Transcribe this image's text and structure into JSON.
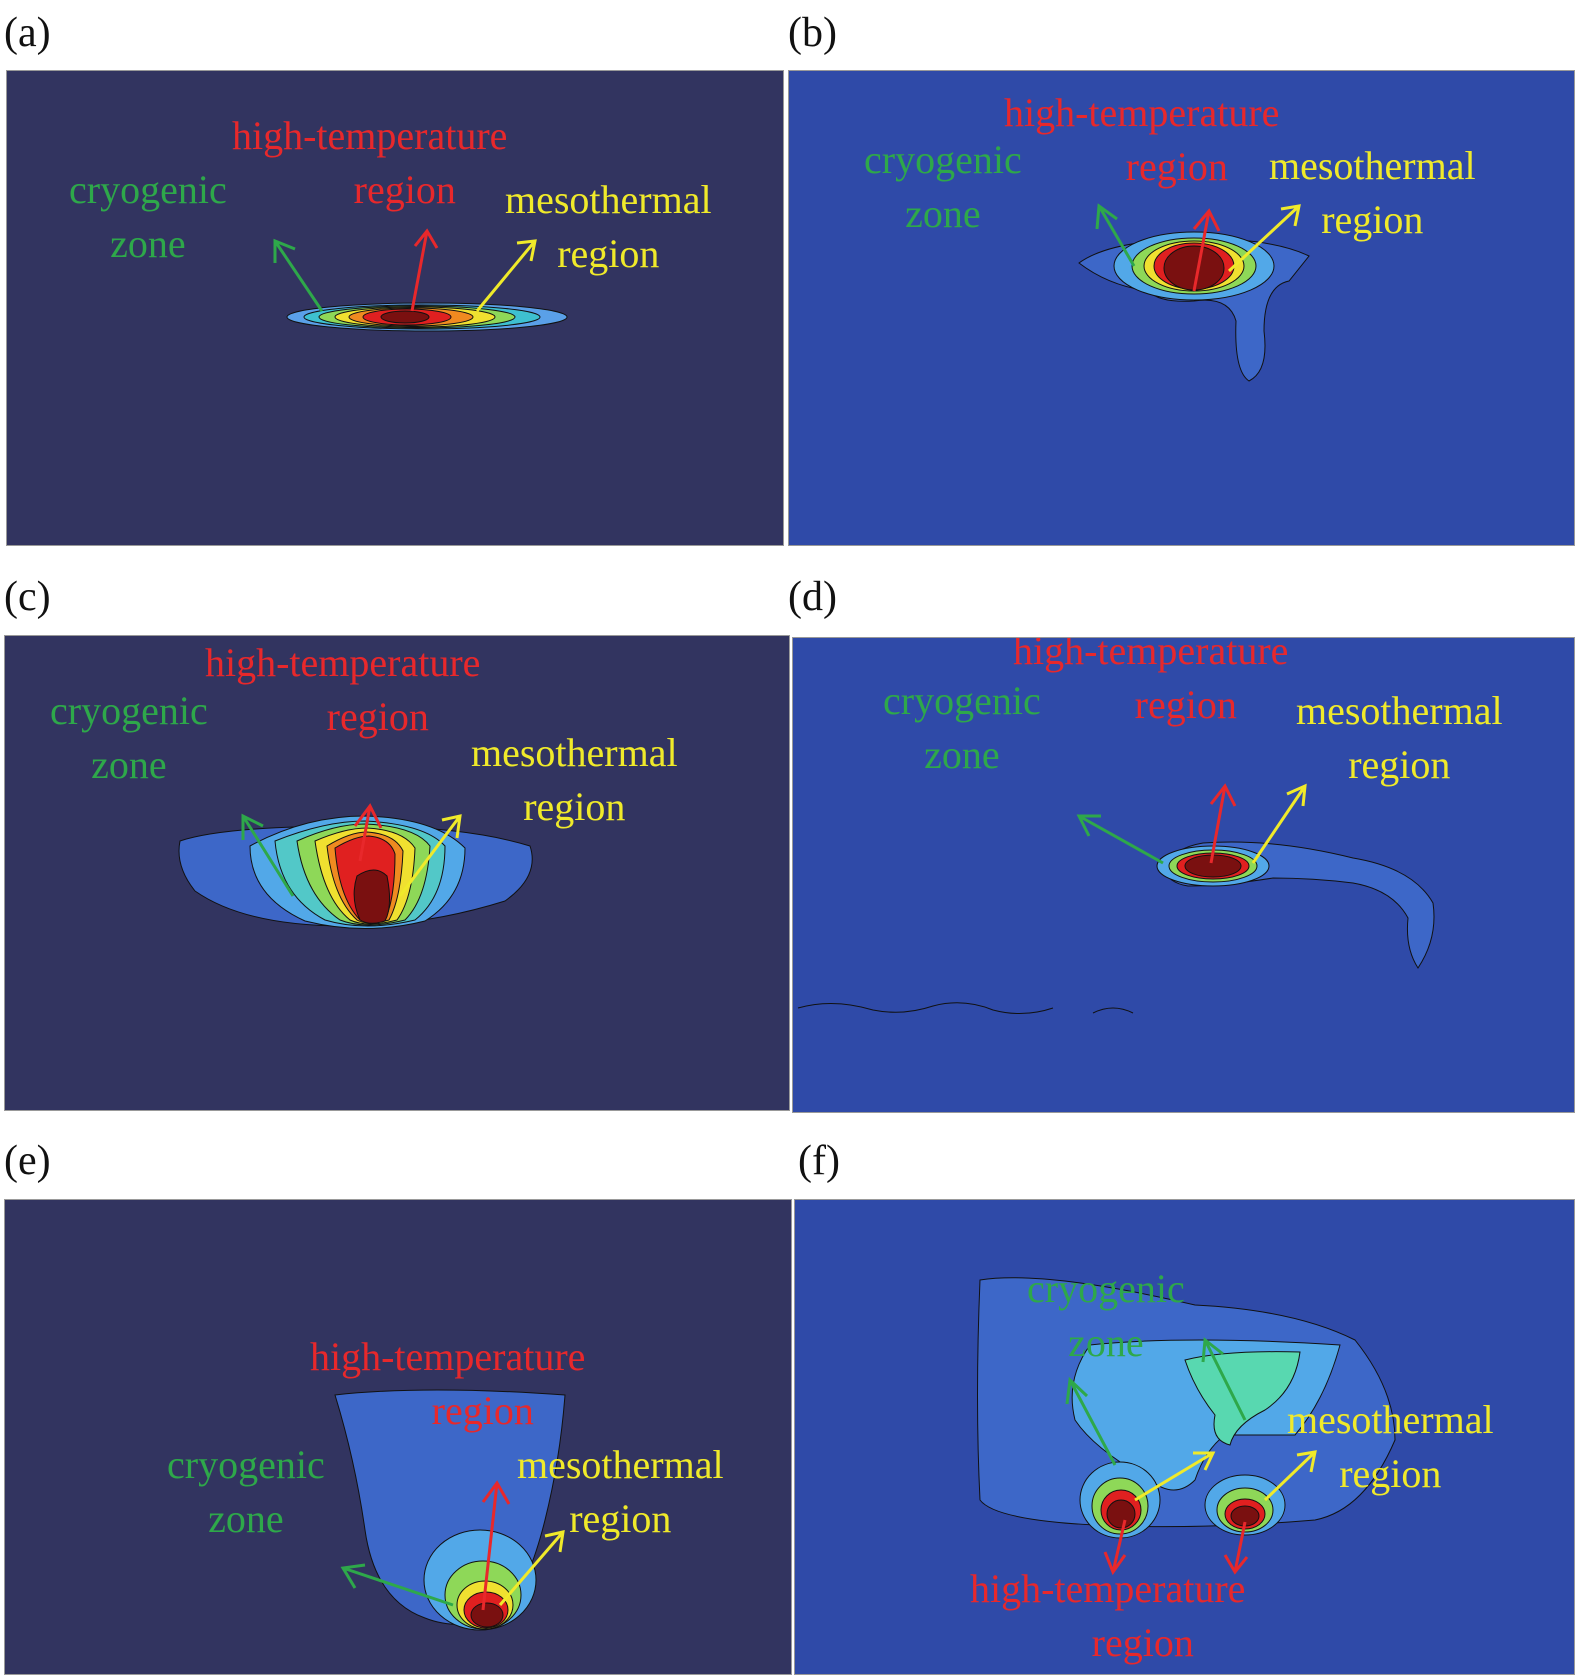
{
  "colors": {
    "dark_bg": "#323460",
    "blue_bg": "#2f4aa8",
    "high": "#e8282b",
    "cryo": "#2ea84a",
    "meso": "#f0ea2a"
  },
  "panels": [
    {
      "label": "(a)",
      "background": "dark-navy",
      "high": [
        "high-temperature",
        "region"
      ],
      "cryo": [
        "cryogenic",
        "zone"
      ],
      "meso": [
        "mesothermal",
        "region"
      ]
    },
    {
      "label": "(b)",
      "background": "blue",
      "high": [
        "high-temperature",
        "region"
      ],
      "cryo": [
        "cryogenic",
        "zone"
      ],
      "meso": [
        "mesothermal",
        "region"
      ]
    },
    {
      "label": "(c)",
      "background": "dark-navy",
      "high": [
        "high-temperature",
        "region"
      ],
      "cryo": [
        "cryogenic",
        "zone"
      ],
      "meso": [
        "mesothermal",
        "region"
      ]
    },
    {
      "label": "(d)",
      "background": "blue",
      "high": [
        "high-temperature",
        "region"
      ],
      "cryo": [
        "cryogenic",
        "zone"
      ],
      "meso": [
        "mesothermal",
        "region"
      ]
    },
    {
      "label": "(e)",
      "background": "dark-navy",
      "high": [
        "high-temperature",
        "region"
      ],
      "cryo": [
        "cryogenic",
        "zone"
      ],
      "meso": [
        "mesothermal",
        "region"
      ]
    },
    {
      "label": "(f)",
      "background": "blue",
      "high": [
        "high-temperature",
        "region"
      ],
      "cryo": [
        "cryogenic",
        "zone"
      ],
      "meso": [
        "mesothermal",
        "region"
      ]
    }
  ]
}
